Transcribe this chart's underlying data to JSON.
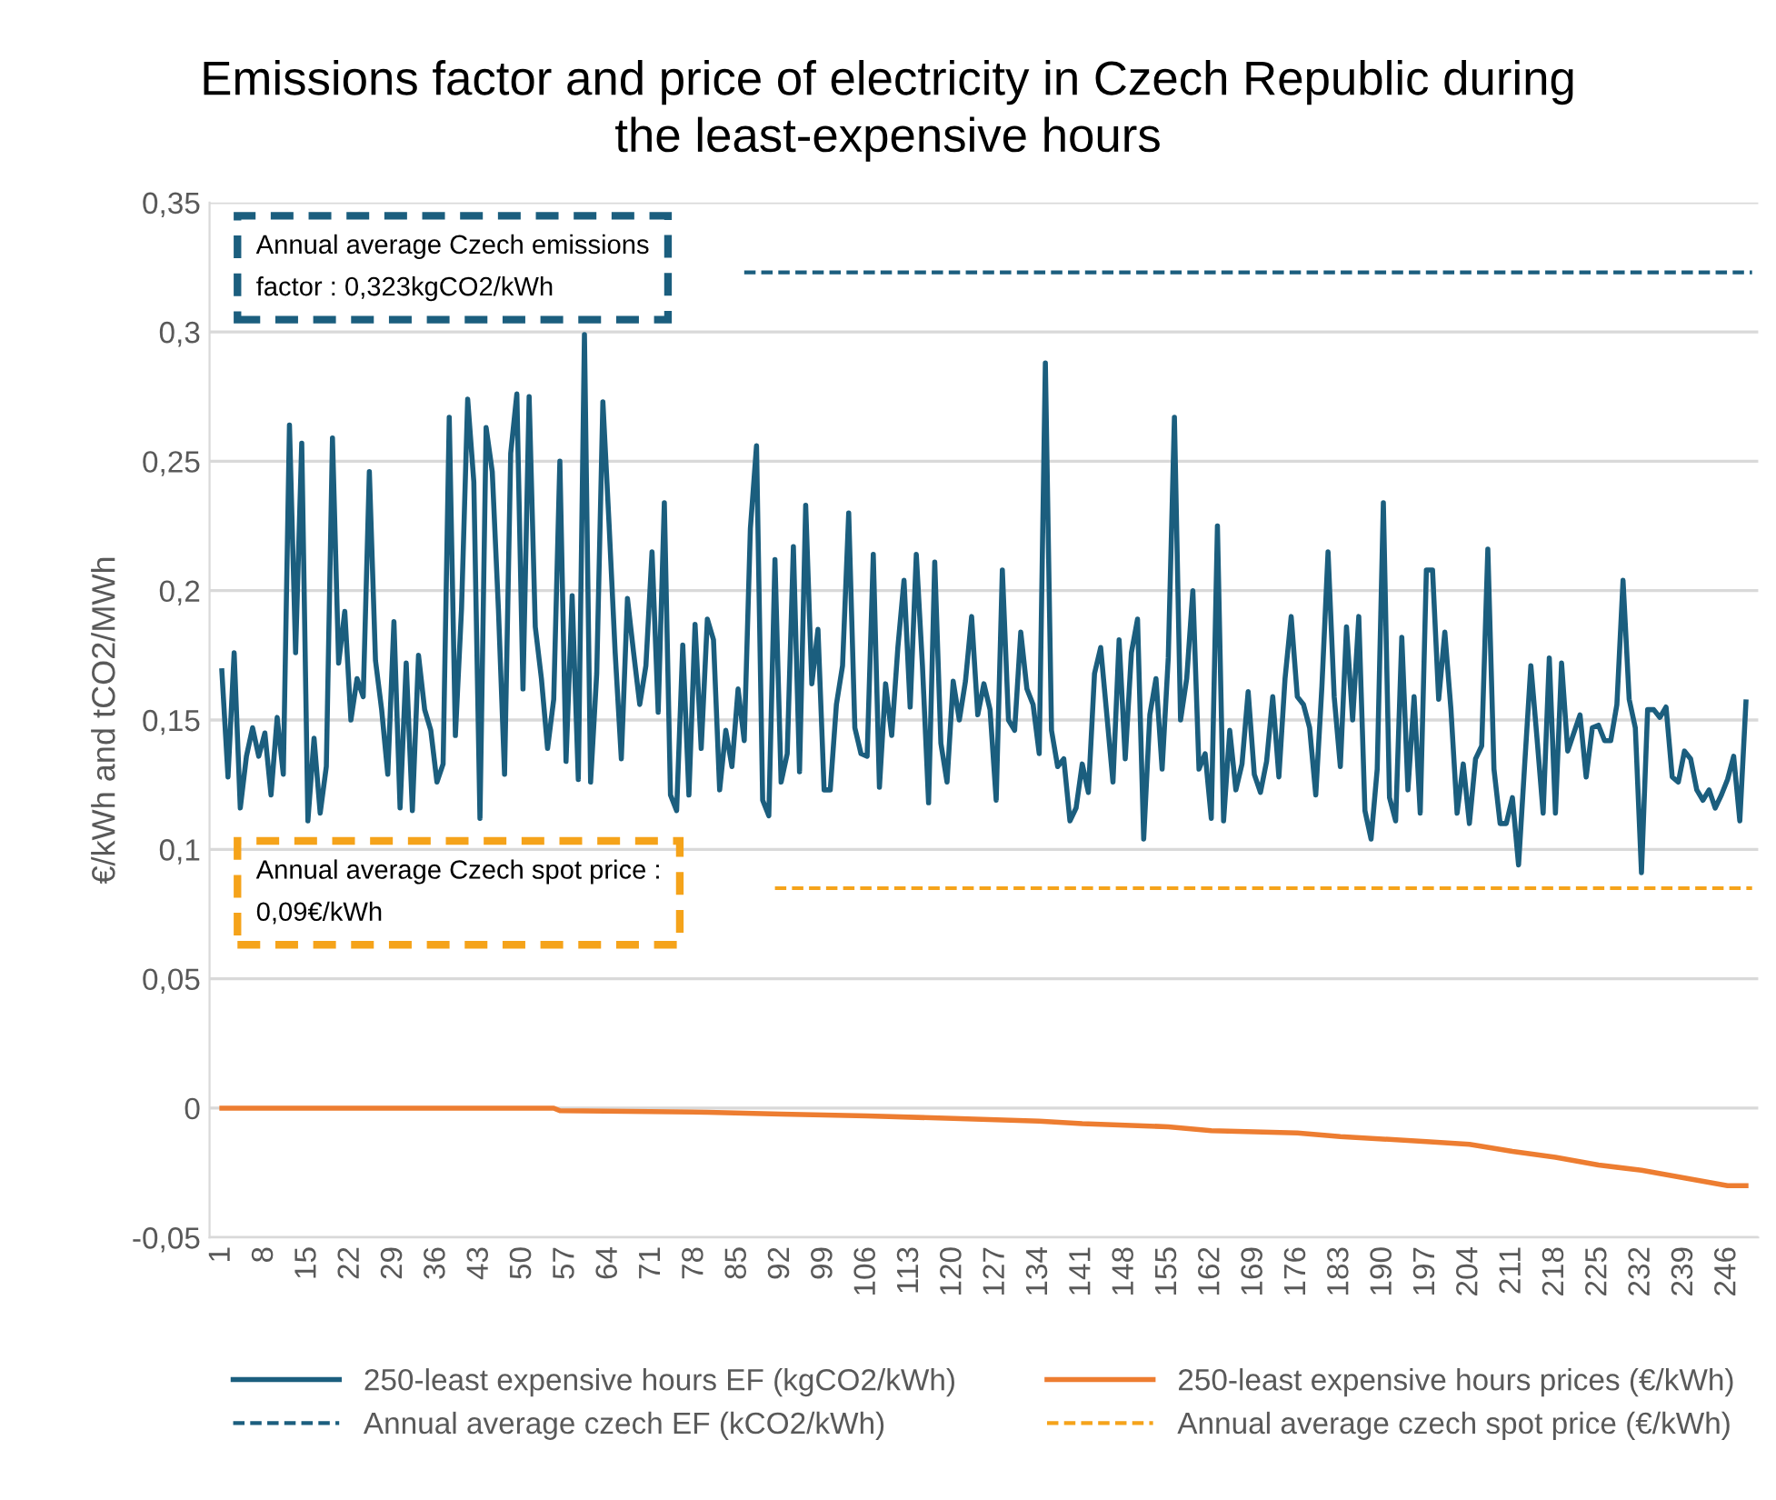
{
  "chart_data": {
    "type": "line",
    "title": "Emissions factor and price of electricity in Czech Republic during\nthe least-expensive hours",
    "ylabel": "€/kWh and tCO2/MWh",
    "ylim": [
      -0.05,
      0.35
    ],
    "yticks": [
      {
        "value": -0.05,
        "label": "-0,05"
      },
      {
        "value": 0,
        "label": "0"
      },
      {
        "value": 0.05,
        "label": "0,05"
      },
      {
        "value": 0.1,
        "label": "0,1"
      },
      {
        "value": 0.15,
        "label": "0,15"
      },
      {
        "value": 0.2,
        "label": "0,2"
      },
      {
        "value": 0.25,
        "label": "0,25"
      },
      {
        "value": 0.3,
        "label": "0,3"
      },
      {
        "value": 0.35,
        "label": "0,35"
      }
    ],
    "xlim": [
      -1,
      251
    ],
    "xticks": [
      1,
      8,
      15,
      22,
      29,
      36,
      43,
      50,
      57,
      64,
      71,
      78,
      85,
      92,
      99,
      106,
      113,
      120,
      127,
      134,
      141,
      148,
      155,
      162,
      169,
      176,
      183,
      190,
      197,
      204,
      211,
      218,
      225,
      232,
      239,
      246
    ],
    "grid": "y",
    "legend": "bottom",
    "series": [
      {
        "name": "250-least expensive hours EF (kgCO2/kWh)",
        "line_style": "solid",
        "color": "#1b5e7e",
        "x": [
          1,
          2,
          3,
          4,
          5,
          6,
          7,
          8,
          9,
          10,
          11,
          12,
          13,
          14,
          15,
          16,
          17,
          18,
          19,
          20,
          21,
          22,
          23,
          24,
          25,
          26,
          27,
          28,
          29,
          30,
          31,
          32,
          33,
          34,
          35,
          36,
          37,
          38,
          39,
          40,
          41,
          42,
          43,
          44,
          45,
          46,
          47,
          48,
          49,
          50,
          51,
          52,
          53,
          54,
          55,
          56,
          57,
          58,
          59,
          60,
          61,
          62,
          63,
          64,
          65,
          66,
          67,
          68,
          69,
          70,
          71,
          72,
          73,
          74,
          75,
          76,
          77,
          78,
          79,
          80,
          81,
          82,
          83,
          84,
          85,
          86,
          87,
          88,
          89,
          90,
          91,
          92,
          93,
          94,
          95,
          96,
          97,
          98,
          99,
          100,
          101,
          102,
          103,
          104,
          105,
          106,
          107,
          108,
          109,
          110,
          111,
          112,
          113,
          114,
          115,
          116,
          117,
          118,
          119,
          120,
          121,
          122,
          123,
          124,
          125,
          126,
          127,
          128,
          129,
          130,
          131,
          132,
          133,
          134,
          135,
          136,
          137,
          138,
          139,
          140,
          141,
          142,
          143,
          144,
          145,
          146,
          147,
          148,
          149,
          150,
          151,
          152,
          153,
          154,
          155,
          156,
          157,
          158,
          159,
          160,
          161,
          162,
          163,
          164,
          165,
          166,
          167,
          168,
          169,
          170,
          171,
          172,
          173,
          174,
          175,
          176,
          177,
          178,
          179,
          180,
          181,
          182,
          183,
          184,
          185,
          186,
          187,
          188,
          189,
          190,
          191,
          192,
          193,
          194,
          195,
          196,
          197,
          198,
          199,
          200,
          201,
          202,
          203,
          204,
          205,
          206,
          207,
          208,
          209,
          210,
          211,
          212,
          213,
          214,
          215,
          216,
          217,
          218,
          219,
          220,
          221,
          222,
          223,
          224,
          225,
          226,
          227,
          228,
          229,
          230,
          231,
          232,
          233,
          234,
          235,
          236,
          237,
          238,
          239,
          240,
          241,
          242,
          243,
          244,
          245,
          246,
          247,
          248,
          249
        ],
        "values": [
          0.169,
          0.128,
          0.176,
          0.116,
          0.136,
          0.147,
          0.136,
          0.145,
          0.121,
          0.151,
          0.129,
          0.264,
          0.176,
          0.257,
          0.111,
          0.143,
          0.114,
          0.132,
          0.259,
          0.172,
          0.192,
          0.15,
          0.166,
          0.159,
          0.246,
          0.173,
          0.154,
          0.129,
          0.188,
          0.116,
          0.172,
          0.115,
          0.175,
          0.154,
          0.146,
          0.126,
          0.133,
          0.267,
          0.144,
          0.193,
          0.274,
          0.242,
          0.112,
          0.263,
          0.246,
          0.193,
          0.129,
          0.253,
          0.276,
          0.162,
          0.275,
          0.186,
          0.166,
          0.139,
          0.158,
          0.25,
          0.134,
          0.198,
          0.127,
          0.299,
          0.126,
          0.168,
          0.273,
          0.226,
          0.176,
          0.135,
          0.197,
          0.176,
          0.156,
          0.171,
          0.215,
          0.153,
          0.234,
          0.121,
          0.115,
          0.179,
          0.121,
          0.187,
          0.139,
          0.189,
          0.181,
          0.123,
          0.146,
          0.132,
          0.162,
          0.142,
          0.224,
          0.256,
          0.119,
          0.113,
          0.212,
          0.126,
          0.137,
          0.217,
          0.13,
          0.233,
          0.164,
          0.185,
          0.123,
          0.123,
          0.156,
          0.171,
          0.23,
          0.147,
          0.137,
          0.136,
          0.214,
          0.124,
          0.164,
          0.144,
          0.178,
          0.204,
          0.155,
          0.214,
          0.171,
          0.118,
          0.211,
          0.141,
          0.126,
          0.165,
          0.15,
          0.165,
          0.19,
          0.152,
          0.164,
          0.154,
          0.119,
          0.208,
          0.15,
          0.146,
          0.184,
          0.162,
          0.156,
          0.137,
          0.288,
          0.146,
          0.132,
          0.135,
          0.111,
          0.116,
          0.133,
          0.122,
          0.168,
          0.178,
          0.152,
          0.126,
          0.181,
          0.135,
          0.176,
          0.189,
          0.104,
          0.152,
          0.166,
          0.131,
          0.174,
          0.267,
          0.15,
          0.166,
          0.2,
          0.131,
          0.137,
          0.112,
          0.225,
          0.111,
          0.146,
          0.123,
          0.133,
          0.161,
          0.129,
          0.122,
          0.134,
          0.159,
          0.128,
          0.166,
          0.19,
          0.159,
          0.156,
          0.147,
          0.121,
          0.163,
          0.215,
          0.159,
          0.132,
          0.186,
          0.15,
          0.19,
          0.115,
          0.104,
          0.131,
          0.234,
          0.12,
          0.111,
          0.182,
          0.123,
          0.159,
          0.114,
          0.208,
          0.208,
          0.158,
          0.184,
          0.154,
          0.114,
          0.133,
          0.11,
          0.135,
          0.14,
          0.216,
          0.131,
          0.11,
          0.11,
          0.12,
          0.094,
          0.133,
          0.171,
          0.143,
          0.114,
          0.174,
          0.114,
          0.172,
          0.138,
          0.145,
          0.152,
          0.128,
          0.147,
          0.148,
          0.142,
          0.142,
          0.156,
          0.204,
          0.158,
          0.147,
          0.091,
          0.154,
          0.154,
          0.151,
          0.155,
          0.128,
          0.126,
          0.138,
          0.135,
          0.123,
          0.119,
          0.123,
          0.116,
          0.121,
          0.127,
          0.136,
          0.111,
          0.157
        ]
      },
      {
        "name": "250-least expensive hours prices (€/kWh)",
        "line_style": "solid",
        "color": "#ed7d31",
        "x": [
          1,
          55,
          56,
          80,
          92,
          106,
          120,
          127,
          134,
          141,
          148,
          155,
          162,
          176,
          183,
          197,
          204,
          211,
          218,
          225,
          232,
          239,
          246,
          249
        ],
        "values": [
          0,
          0,
          -0.001,
          -0.0016,
          -0.0023,
          -0.003,
          -0.004,
          -0.0045,
          -0.005,
          -0.006,
          -0.0066,
          -0.0072,
          -0.0087,
          -0.0096,
          -0.011,
          -0.0129,
          -0.014,
          -0.0167,
          -0.019,
          -0.022,
          -0.024,
          -0.027,
          -0.03,
          -0.03
        ]
      },
      {
        "name": "Annual average czech EF (kCO2/kWh)",
        "line_style": "dashed",
        "color": "#1b5e7e",
        "x": [
          86,
          250
        ],
        "values": [
          0.323,
          0.323
        ]
      },
      {
        "name": "Annual average czech spot price (€/kWh)",
        "line_style": "dashed",
        "color": "#f5a31a",
        "x": [
          91,
          250
        ],
        "values": [
          0.085,
          0.085
        ]
      }
    ],
    "annotations": [
      "Annual average Czech emissions\nfactor : 0,323kgCO2/kWh",
      "Annual average Czech spot price :\n0,09€/kWh"
    ]
  }
}
